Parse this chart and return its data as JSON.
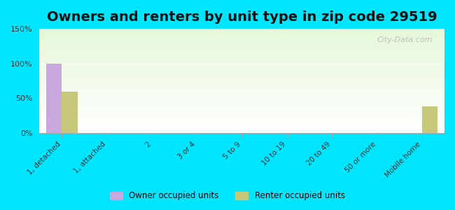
{
  "title": "Owners and renters by unit type in zip code 29519",
  "categories": [
    "1, detached",
    "1, attached",
    "2",
    "3 or 4",
    "5 to 9",
    "10 to 19",
    "20 to 49",
    "50 or more",
    "Mobile home"
  ],
  "owner_values": [
    100,
    0,
    0,
    0,
    0,
    0,
    0,
    0,
    0
  ],
  "renter_values": [
    60,
    0,
    0,
    0,
    0,
    0,
    0,
    0,
    38
  ],
  "owner_color": "#c9a8e0",
  "renter_color": "#c8c87a",
  "ylim": [
    0,
    150
  ],
  "yticks": [
    0,
    50,
    100,
    150
  ],
  "ytick_labels": [
    "0%",
    "50%",
    "100%",
    "150%"
  ],
  "background_outer": "#00e5ff",
  "bar_width": 0.35,
  "legend_owner": "Owner occupied units",
  "legend_renter": "Renter occupied units",
  "title_fontsize": 14,
  "watermark": "City-Data.com"
}
